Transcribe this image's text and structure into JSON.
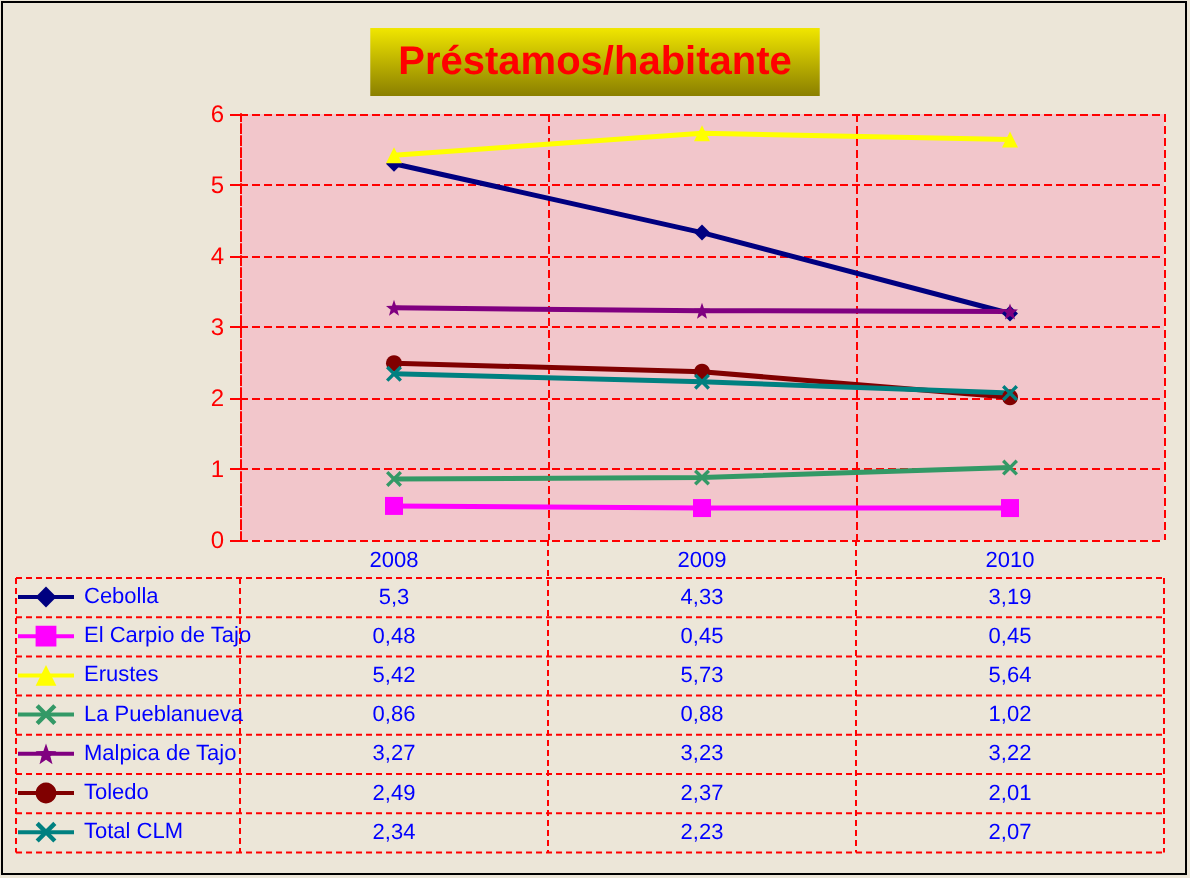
{
  "chart_data": {
    "type": "line",
    "title": "Préstamos/habitante",
    "categories": [
      "2008",
      "2009",
      "2010"
    ],
    "ylim": [
      0,
      6
    ],
    "yticks": [
      0,
      1,
      2,
      3,
      4,
      5,
      6
    ],
    "grid": true,
    "legend": "bottom left",
    "series": [
      {
        "name": "Cebolla",
        "color": "#000080",
        "marker": "diamond",
        "values": [
          5.3,
          4.33,
          3.19
        ],
        "value_labels": [
          "5,3",
          "4,33",
          "3,19"
        ]
      },
      {
        "name": "El Carpio de Tajo",
        "color": "#ff00ff",
        "marker": "square",
        "values": [
          0.48,
          0.45,
          0.45
        ],
        "value_labels": [
          "0,48",
          "0,45",
          "0,45"
        ]
      },
      {
        "name": "Erustes",
        "color": "#ffff00",
        "marker": "triangle",
        "values": [
          5.42,
          5.73,
          5.64
        ],
        "value_labels": [
          "5,42",
          "5,73",
          "5,64"
        ]
      },
      {
        "name": "La Pueblanueva",
        "color": "#339966",
        "marker": "cross",
        "values": [
          0.86,
          0.88,
          1.02
        ],
        "value_labels": [
          "0,86",
          "0,88",
          "1,02"
        ]
      },
      {
        "name": "Malpica de Tajo",
        "color": "#800080",
        "marker": "star",
        "values": [
          3.27,
          3.23,
          3.22
        ],
        "value_labels": [
          "3,27",
          "3,23",
          "3,22"
        ]
      },
      {
        "name": "Toledo",
        "color": "#800000",
        "marker": "circle",
        "values": [
          2.49,
          2.37,
          2.01
        ],
        "value_labels": [
          "2,49",
          "2,37",
          "2,01"
        ]
      },
      {
        "name": "Total CLM",
        "color": "#008080",
        "marker": "cross",
        "values": [
          2.34,
          2.23,
          2.07
        ],
        "value_labels": [
          "2,34",
          "2,23",
          "2,07"
        ]
      }
    ]
  }
}
